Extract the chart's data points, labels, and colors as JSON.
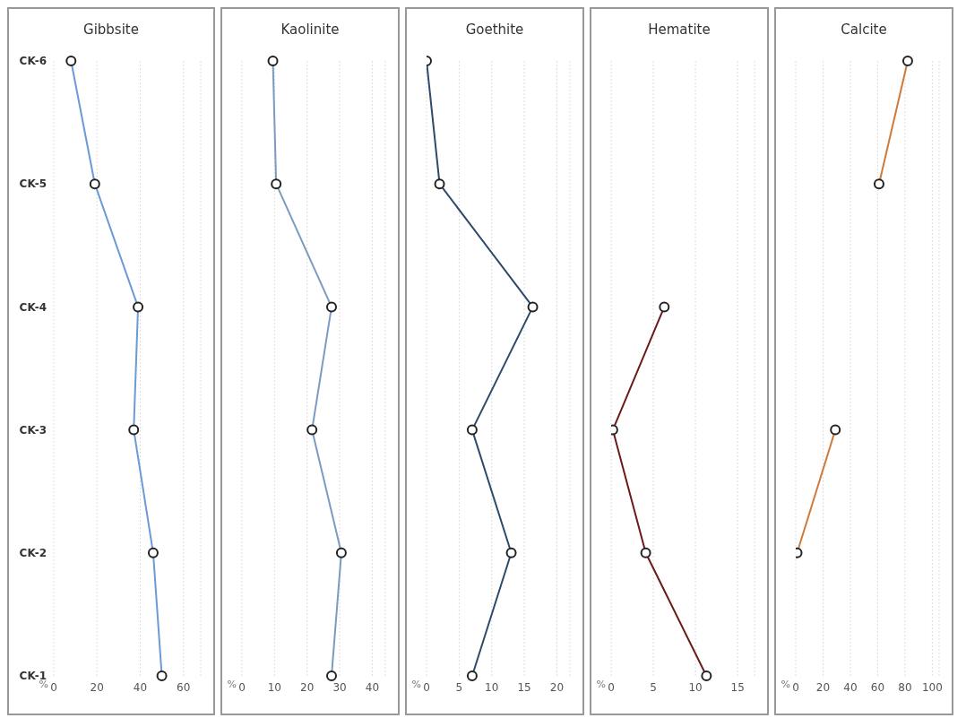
{
  "chart_data": [
    {
      "type": "line",
      "title": "Gibbsite",
      "xlabel": "%",
      "orientation": "horizontal",
      "categories": [
        "CK-6",
        "CK-5",
        "CK-4",
        "CK-3",
        "CK-2",
        "CK-1"
      ],
      "series": [
        {
          "color": "#6a9ad8",
          "values": [
            8,
            19,
            39,
            37,
            46,
            50
          ]
        }
      ],
      "xlim": [
        0,
        68
      ],
      "xticks": [
        0,
        20,
        40,
        60
      ],
      "grid": "x",
      "marker": "circle"
    },
    {
      "type": "line",
      "title": "Kaolinite",
      "xlabel": "%",
      "orientation": "horizontal",
      "categories": [
        null,
        null,
        null,
        null,
        null,
        null
      ],
      "series": [
        {
          "color": "#7a9cc0",
          "values": [
            9.5,
            10.5,
            27.5,
            21.5,
            30.5,
            27.5
          ]
        }
      ],
      "xlim": [
        0,
        44
      ],
      "xticks": [
        0,
        10,
        20,
        30,
        40
      ],
      "grid": "x",
      "marker": "circle",
      "tick_labels": "x"
    },
    {
      "type": "line",
      "title": "Goethite",
      "xlabel": "%",
      "orientation": "horizontal",
      "categories": [
        null,
        null,
        null,
        null,
        null,
        null
      ],
      "series": [
        {
          "color": "#2e4a6a",
          "values": [
            0,
            2,
            16.3,
            7,
            13,
            7
          ]
        }
      ],
      "xlim": [
        0,
        22
      ],
      "xticks": [
        0,
        5,
        10,
        15,
        20
      ],
      "grid": "x",
      "marker": "circle",
      "tick_labels": "x"
    },
    {
      "type": "line",
      "title": "Hematite",
      "xlabel": "%",
      "orientation": "horizontal",
      "categories": [
        null,
        null,
        null,
        null,
        null,
        null
      ],
      "series": [
        {
          "color": "#6b1a1a",
          "values": [
            null,
            null,
            6.3,
            0.2,
            4.1,
            11.3
          ]
        }
      ],
      "xlim": [
        0,
        17
      ],
      "xticks": [
        0,
        5,
        10,
        15
      ],
      "grid": "x",
      "marker": "circle",
      "tick_labels": "x"
    },
    {
      "type": "line",
      "title": "Calcite",
      "xlabel": "%",
      "orientation": "horizontal",
      "categories": [
        null,
        null,
        null,
        null,
        null,
        null
      ],
      "series": [
        {
          "color": "#d07a3a",
          "values": [
            82,
            61,
            null,
            29,
            1,
            null
          ]
        }
      ],
      "xlim": [
        0,
        105
      ],
      "xticks": [
        0,
        20,
        40,
        60,
        80,
        100
      ],
      "grid": "x",
      "marker": "circle",
      "tick_labels": "x"
    }
  ]
}
